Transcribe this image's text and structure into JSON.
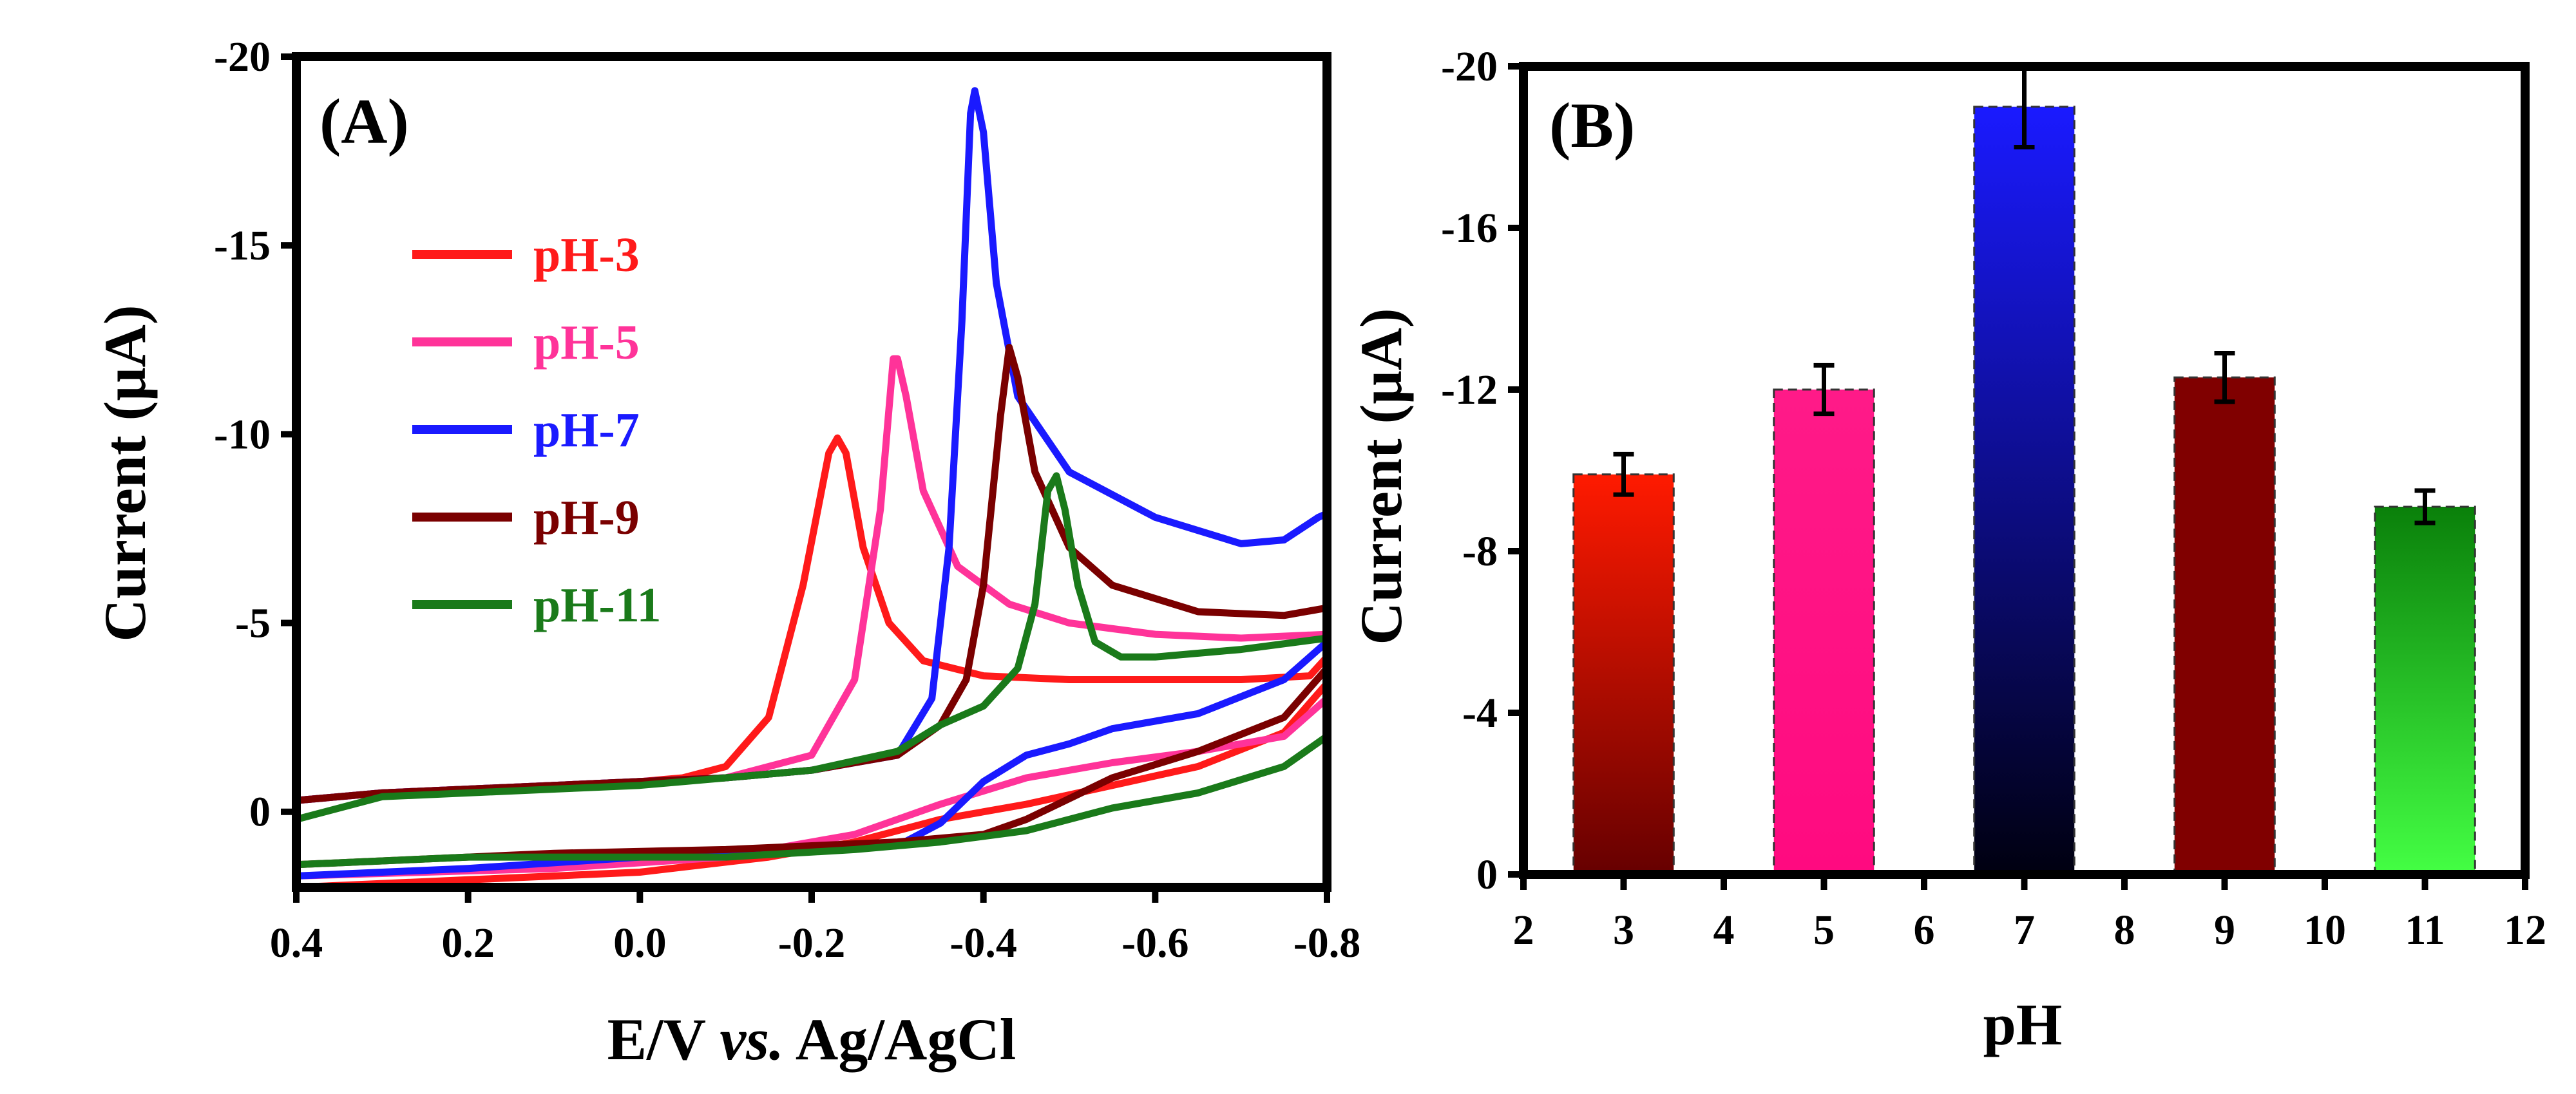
{
  "chart_data": [
    {
      "type": "line",
      "panel_label": "(A)",
      "xlabel": "E/V vs. Ag/AgCl",
      "xlabel_parts": [
        "E/V ",
        "vs.",
        " Ag/AgCl"
      ],
      "ylabel": "Current (μA)",
      "xlim": [
        0.4,
        -0.8
      ],
      "ylim": [
        2,
        -20
      ],
      "xticks": [
        0.4,
        0.2,
        0.0,
        -0.2,
        -0.4,
        -0.6,
        -0.8
      ],
      "xtick_labels": [
        "0.4",
        "0.2",
        "0.0",
        "-0.2",
        "-0.4",
        "-0.6",
        "-0.8"
      ],
      "yticks": [
        0,
        -5,
        -10,
        -15,
        -20
      ],
      "ytick_labels": [
        "0",
        "-5",
        "-10",
        "-15",
        "-20"
      ],
      "legend_position": "upper-left",
      "series": [
        {
          "name": "pH-3",
          "color": "#ff1a1a",
          "forward": [
            [
              0.4,
              -0.3
            ],
            [
              0.3,
              -0.5
            ],
            [
              0.2,
              -0.6
            ],
            [
              0.1,
              -0.7
            ],
            [
              0.0,
              -0.8
            ],
            [
              -0.05,
              -0.9
            ],
            [
              -0.1,
              -1.2
            ],
            [
              -0.15,
              -2.5
            ],
            [
              -0.19,
              -6.0
            ],
            [
              -0.22,
              -9.5
            ],
            [
              -0.23,
              -9.9
            ],
            [
              -0.24,
              -9.5
            ],
            [
              -0.26,
              -7.0
            ],
            [
              -0.29,
              -5.0
            ],
            [
              -0.33,
              -4.0
            ],
            [
              -0.4,
              -3.6
            ],
            [
              -0.5,
              -3.5
            ],
            [
              -0.6,
              -3.5
            ],
            [
              -0.7,
              -3.5
            ],
            [
              -0.78,
              -3.6
            ],
            [
              -0.8,
              -4.1
            ]
          ],
          "reverse": [
            [
              -0.8,
              -3.4
            ],
            [
              -0.75,
              -2.1
            ],
            [
              -0.65,
              -1.2
            ],
            [
              -0.55,
              -0.7
            ],
            [
              -0.45,
              -0.2
            ],
            [
              -0.35,
              0.2
            ],
            [
              -0.25,
              0.8
            ],
            [
              -0.15,
              1.2
            ],
            [
              0.0,
              1.6
            ],
            [
              0.2,
              1.8
            ],
            [
              0.4,
              2.0
            ]
          ]
        },
        {
          "name": "pH-5",
          "color": "#ff3399",
          "forward": [
            [
              0.4,
              -0.3
            ],
            [
              0.3,
              -0.5
            ],
            [
              0.2,
              -0.6
            ],
            [
              0.1,
              -0.7
            ],
            [
              0.0,
              -0.8
            ],
            [
              -0.1,
              -0.9
            ],
            [
              -0.2,
              -1.5
            ],
            [
              -0.25,
              -3.5
            ],
            [
              -0.28,
              -8.0
            ],
            [
              -0.295,
              -12.0
            ],
            [
              -0.3,
              -12.0
            ],
            [
              -0.31,
              -11.0
            ],
            [
              -0.33,
              -8.5
            ],
            [
              -0.37,
              -6.5
            ],
            [
              -0.43,
              -5.5
            ],
            [
              -0.5,
              -5.0
            ],
            [
              -0.6,
              -4.7
            ],
            [
              -0.7,
              -4.6
            ],
            [
              -0.8,
              -4.7
            ]
          ],
          "reverse": [
            [
              -0.8,
              -3.0
            ],
            [
              -0.75,
              -2.0
            ],
            [
              -0.65,
              -1.6
            ],
            [
              -0.55,
              -1.3
            ],
            [
              -0.45,
              -0.9
            ],
            [
              -0.35,
              -0.2
            ],
            [
              -0.25,
              0.6
            ],
            [
              -0.1,
              1.2
            ],
            [
              0.1,
              1.5
            ],
            [
              0.4,
              1.7
            ]
          ]
        },
        {
          "name": "pH-7",
          "color": "#1a1aff",
          "forward": [
            [
              0.4,
              -0.3
            ],
            [
              0.3,
              -0.5
            ],
            [
              0.2,
              -0.6
            ],
            [
              0.1,
              -0.7
            ],
            [
              0.0,
              -0.8
            ],
            [
              -0.1,
              -0.9
            ],
            [
              -0.2,
              -1.1
            ],
            [
              -0.3,
              -1.5
            ],
            [
              -0.34,
              -3.0
            ],
            [
              -0.36,
              -7.0
            ],
            [
              -0.375,
              -13.0
            ],
            [
              -0.385,
              -18.5
            ],
            [
              -0.39,
              -19.1
            ],
            [
              -0.4,
              -18.0
            ],
            [
              -0.415,
              -14.0
            ],
            [
              -0.44,
              -11.0
            ],
            [
              -0.5,
              -9.0
            ],
            [
              -0.6,
              -7.8
            ],
            [
              -0.7,
              -7.1
            ],
            [
              -0.75,
              -7.2
            ],
            [
              -0.79,
              -7.8
            ],
            [
              -0.8,
              -7.9
            ]
          ],
          "reverse": [
            [
              -0.8,
              -4.5
            ],
            [
              -0.75,
              -3.5
            ],
            [
              -0.65,
              -2.6
            ],
            [
              -0.55,
              -2.2
            ],
            [
              -0.5,
              -1.8
            ],
            [
              -0.45,
              -1.5
            ],
            [
              -0.4,
              -0.8
            ],
            [
              -0.35,
              0.3
            ],
            [
              -0.3,
              0.9
            ],
            [
              -0.2,
              1.0
            ],
            [
              0.0,
              1.2
            ],
            [
              0.2,
              1.5
            ],
            [
              0.4,
              1.7
            ]
          ]
        },
        {
          "name": "pH-9",
          "color": "#7a0000",
          "forward": [
            [
              0.4,
              -0.3
            ],
            [
              0.3,
              -0.5
            ],
            [
              0.2,
              -0.6
            ],
            [
              0.1,
              -0.7
            ],
            [
              0.0,
              -0.8
            ],
            [
              -0.1,
              -0.9
            ],
            [
              -0.2,
              -1.1
            ],
            [
              -0.3,
              -1.5
            ],
            [
              -0.35,
              -2.3
            ],
            [
              -0.38,
              -3.5
            ],
            [
              -0.4,
              -6.0
            ],
            [
              -0.42,
              -10.5
            ],
            [
              -0.43,
              -12.3
            ],
            [
              -0.44,
              -11.5
            ],
            [
              -0.46,
              -9.0
            ],
            [
              -0.5,
              -7.0
            ],
            [
              -0.55,
              -6.0
            ],
            [
              -0.65,
              -5.3
            ],
            [
              -0.75,
              -5.2
            ],
            [
              -0.8,
              -5.4
            ]
          ],
          "reverse": [
            [
              -0.8,
              -3.8
            ],
            [
              -0.75,
              -2.5
            ],
            [
              -0.65,
              -1.6
            ],
            [
              -0.55,
              -0.9
            ],
            [
              -0.45,
              0.2
            ],
            [
              -0.4,
              0.6
            ],
            [
              -0.3,
              0.8
            ],
            [
              -0.2,
              0.9
            ],
            [
              -0.1,
              1.0
            ],
            [
              0.1,
              1.1
            ],
            [
              0.3,
              1.3
            ],
            [
              0.4,
              1.4
            ]
          ]
        },
        {
          "name": "pH-11",
          "color": "#1a7a1a",
          "forward": [
            [
              0.4,
              0.2
            ],
            [
              0.3,
              -0.4
            ],
            [
              0.2,
              -0.5
            ],
            [
              0.1,
              -0.6
            ],
            [
              0.0,
              -0.7
            ],
            [
              -0.1,
              -0.9
            ],
            [
              -0.2,
              -1.1
            ],
            [
              -0.3,
              -1.6
            ],
            [
              -0.35,
              -2.3
            ],
            [
              -0.4,
              -2.8
            ],
            [
              -0.44,
              -3.8
            ],
            [
              -0.46,
              -5.5
            ],
            [
              -0.475,
              -8.5
            ],
            [
              -0.485,
              -8.9
            ],
            [
              -0.495,
              -8.0
            ],
            [
              -0.51,
              -6.0
            ],
            [
              -0.53,
              -4.5
            ],
            [
              -0.56,
              -4.1
            ],
            [
              -0.6,
              -4.1
            ],
            [
              -0.7,
              -4.3
            ],
            [
              -0.8,
              -4.6
            ]
          ],
          "reverse": [
            [
              -0.8,
              -2.0
            ],
            [
              -0.75,
              -1.2
            ],
            [
              -0.65,
              -0.5
            ],
            [
              -0.55,
              -0.1
            ],
            [
              -0.45,
              0.5
            ],
            [
              -0.35,
              0.8
            ],
            [
              -0.25,
              1.0
            ],
            [
              -0.1,
              1.2
            ],
            [
              0.0,
              1.2
            ],
            [
              0.2,
              1.2
            ],
            [
              0.4,
              1.4
            ]
          ]
        }
      ]
    },
    {
      "type": "bar",
      "panel_label": "(B)",
      "xlabel": "pH",
      "ylabel": "Current (μA)",
      "xlim": [
        2,
        12
      ],
      "ylim": [
        0,
        -20
      ],
      "xticks": [
        2,
        3,
        4,
        5,
        6,
        7,
        8,
        9,
        10,
        11,
        12
      ],
      "xtick_labels": [
        "2",
        "3",
        "4",
        "5",
        "6",
        "7",
        "8",
        "9",
        "10",
        "11",
        "12"
      ],
      "yticks": [
        0,
        -4,
        -8,
        -12,
        -16,
        -20
      ],
      "ytick_labels": [
        "0",
        "-4",
        "-8",
        "-12",
        "-16",
        "-20"
      ],
      "categories": [
        3,
        5,
        7,
        9,
        11
      ],
      "values": [
        -9.9,
        -12.0,
        -19.0,
        -12.3,
        -9.1
      ],
      "errors": [
        0.5,
        0.6,
        1.0,
        0.6,
        0.4
      ],
      "bar_width": 1.0,
      "bar_gradients": [
        {
          "top": "#ff1a00",
          "bottom": "#660000"
        },
        {
          "top": "#ff1a88",
          "bottom": "#ff0a80"
        },
        {
          "top": "#1a1aff",
          "bottom": "#000010"
        },
        {
          "top": "#800000",
          "bottom": "#800000"
        },
        {
          "top": "#0a800a",
          "bottom": "#44ff44"
        }
      ]
    }
  ]
}
